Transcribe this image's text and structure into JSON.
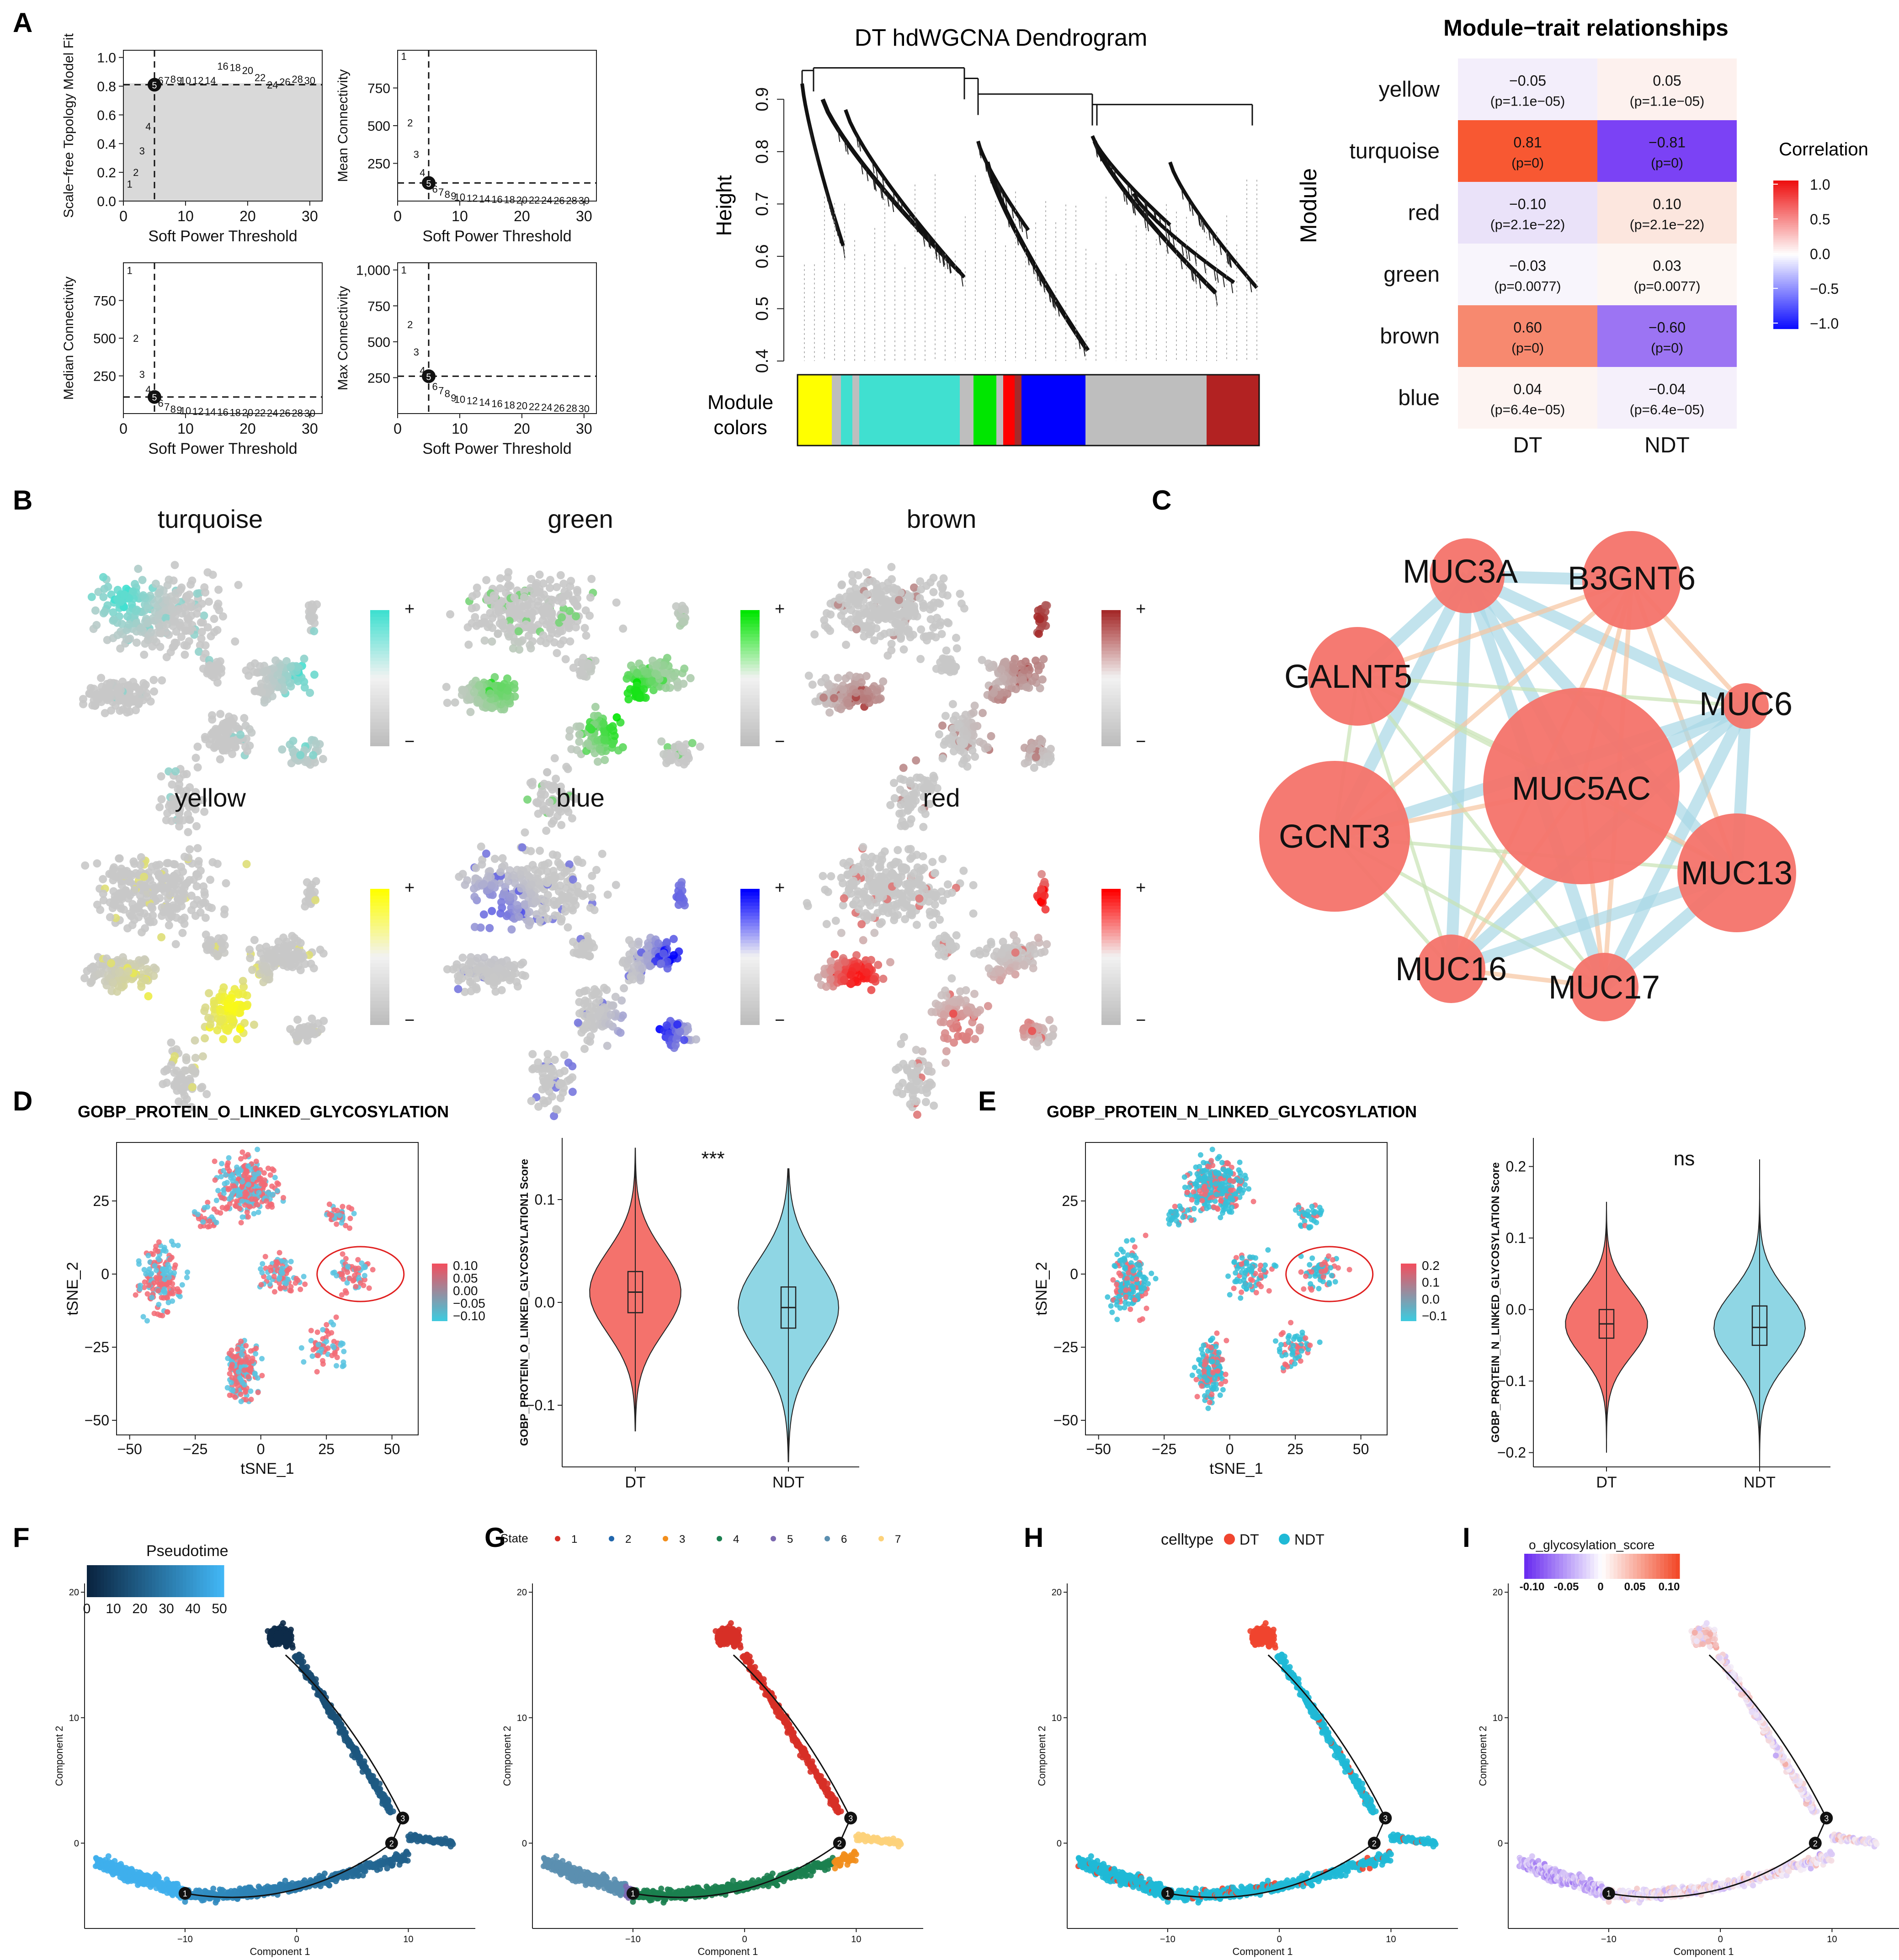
{
  "panel_labels": [
    "A",
    "B",
    "C",
    "D",
    "E",
    "F",
    "G",
    "H",
    "I"
  ],
  "panel_A": {
    "soft_power": {
      "xlabel": "Soft Power Threshold",
      "xticks": [
        "0",
        "10",
        "20",
        "30"
      ],
      "subplots": [
        {
          "ylabel": "Scale−free Topology Model Fit",
          "yticks": [
            "0.0",
            "0.2",
            "0.4",
            "0.6",
            "0.8",
            "1.0"
          ]
        },
        {
          "ylabel": "Mean Connectivity",
          "yticks": [
            "250",
            "500",
            "750"
          ]
        },
        {
          "ylabel": "Median Connectivity",
          "yticks": [
            "250",
            "500",
            "750"
          ]
        },
        {
          "ylabel": "Max Connectivity",
          "yticks": [
            "250",
            "500",
            "750",
            "1,000"
          ]
        }
      ]
    },
    "dendrogram": {
      "title": "DT hdWGCNA Dendrogram",
      "ylabel": "Height",
      "yticks": [
        "0.4",
        "0.5",
        "0.6",
        "0.7",
        "0.8",
        "0.9"
      ],
      "colors_label_1": "Module",
      "colors_label_2": "colors"
    },
    "heatmap": {
      "title": "Module−trait relationships",
      "ylabel": "Module",
      "legend_title": "Correlation",
      "legend_ticks": [
        "1.0",
        "0.5",
        "0.0",
        "−0.5",
        "−1.0"
      ],
      "columns": [
        "DT",
        "NDT"
      ],
      "rows": [
        {
          "module": "yellow",
          "cells": [
            {
              "r": "−0.05",
              "p": "(p=1.1e−05)",
              "fill": "#f3eefb"
            },
            {
              "r": "0.05",
              "p": "(p=1.1e−05)",
              "fill": "#fdf1ee"
            }
          ]
        },
        {
          "module": "turquoise",
          "cells": [
            {
              "r": "0.81",
              "p": "(p=0)",
              "fill": "#f85832"
            },
            {
              "r": "−0.81",
              "p": "(p=0)",
              "fill": "#7b42f5"
            }
          ]
        },
        {
          "module": "red",
          "cells": [
            {
              "r": "−0.10",
              "p": "(p=2.1e−22)",
              "fill": "#eae2f9"
            },
            {
              "r": "0.10",
              "p": "(p=2.1e−22)",
              "fill": "#fce6de"
            }
          ]
        },
        {
          "module": "green",
          "cells": [
            {
              "r": "−0.03",
              "p": "(p=0.0077)",
              "fill": "#f8f5fc"
            },
            {
              "r": "0.03",
              "p": "(p=0.0077)",
              "fill": "#fdf6f3"
            }
          ]
        },
        {
          "module": "brown",
          "cells": [
            {
              "r": "0.60",
              "p": "(p=0)",
              "fill": "#f7896f"
            },
            {
              "r": "−0.60",
              "p": "(p=0)",
              "fill": "#9c74f3"
            }
          ]
        },
        {
          "module": "blue",
          "cells": [
            {
              "r": "0.04",
              "p": "(p=6.4e−05)",
              "fill": "#fdf4f2"
            },
            {
              "r": "−0.04",
              "p": "(p=6.4e−05)",
              "fill": "#f5f0fb"
            }
          ]
        }
      ]
    }
  },
  "panel_B": {
    "modules": [
      {
        "name": "turquoise",
        "color": "#40e0d0"
      },
      {
        "name": "green",
        "color": "#00e600"
      },
      {
        "name": "brown",
        "color": "#a52a2a"
      },
      {
        "name": "yellow",
        "color": "#ffff00"
      },
      {
        "name": "blue",
        "color": "#0000ff"
      },
      {
        "name": "red",
        "color": "#ff0000"
      }
    ],
    "plus": "+",
    "minus": "−"
  },
  "panel_C": {
    "nodes": [
      "MUC3A",
      "B3GNT6",
      "GALNT5",
      "MUC6",
      "MUC5AC",
      "GCNT3",
      "MUC13",
      "MUC16",
      "MUC17"
    ],
    "node_color": "#f4736a"
  },
  "panel_D": {
    "title": "GOBP_PROTEIN_O_LINKED_GLYCOSYLATION",
    "tsne_xlabel": "tSNE_1",
    "tsne_ylabel": "tSNE_2",
    "tsne_xticks": [
      "−50",
      "−25",
      "0",
      "25",
      "50"
    ],
    "tsne_yticks": [
      "25",
      "0",
      "−25",
      "−50"
    ],
    "legend_ticks": [
      "0.10",
      "0.05",
      "0.00",
      "−0.05",
      "−0.10"
    ],
    "violin_ylabel": "GOBP_PROTEIN_O_LINKED_GLYCOSYLATION1 Score",
    "violin_yticks": [
      "0.1",
      "0.0",
      "−0.1"
    ],
    "violin_groups": [
      "DT",
      "NDT"
    ],
    "signif": "***"
  },
  "panel_E": {
    "title": "GOBP_PROTEIN_N_LINKED_GLYCOSYLATION",
    "tsne_xlabel": "tSNE_1",
    "tsne_ylabel": "tSNE_2",
    "tsne_xticks": [
      "−50",
      "−25",
      "0",
      "25",
      "50"
    ],
    "tsne_yticks": [
      "25",
      "0",
      "−25",
      "−50"
    ],
    "legend_ticks": [
      "0.2",
      "0.1",
      "0.0",
      "−0.1"
    ],
    "violin_ylabel": "GOBP_PROTEIN_N_LINKED_GLYCOSYLATION Score",
    "violin_yticks": [
      "0.2",
      "0.1",
      "0.0",
      "−0.1",
      "−0.2"
    ],
    "violin_groups": [
      "DT",
      "NDT"
    ],
    "signif": "ns"
  },
  "trajectory": {
    "xlabel": "Component 1",
    "ylabel": "Component 2",
    "xticks": [
      "−10",
      "0",
      "10"
    ],
    "yticks": [
      "20",
      "10",
      "0"
    ],
    "branch_points": [
      "1",
      "2",
      "3"
    ]
  },
  "panel_F": {
    "legend_title": "Pseudotime",
    "legend_ticks": [
      "0",
      "10",
      "20",
      "30",
      "40",
      "50"
    ]
  },
  "panel_G": {
    "legend_title": "State",
    "states": [
      {
        "label": "1",
        "color": "#d73027"
      },
      {
        "label": "2",
        "color": "#2166ac"
      },
      {
        "label": "3",
        "color": "#f28e1c"
      },
      {
        "label": "4",
        "color": "#1b7f4f"
      },
      {
        "label": "5",
        "color": "#7b68b0"
      },
      {
        "label": "6",
        "color": "#5b8fb0"
      },
      {
        "label": "7",
        "color": "#fdd27a"
      }
    ]
  },
  "panel_H": {
    "legend_title": "celltype",
    "groups": [
      {
        "label": "DT",
        "color": "#f0452f"
      },
      {
        "label": "NDT",
        "color": "#1fb9d6"
      }
    ]
  },
  "panel_I": {
    "legend_title": "o_glycosylation_score",
    "legend_ticks": [
      "-0.10",
      "-0.05",
      "0",
      "0.05",
      "0.10"
    ]
  },
  "chart_data": [
    {
      "type": "scatter",
      "title": "",
      "xlabel": "Soft Power Threshold",
      "ylabel": "Scale−free Topology Model Fit",
      "x": [
        1,
        2,
        3,
        4,
        5,
        6,
        7,
        8,
        9,
        10,
        12,
        14,
        16,
        18,
        20,
        22,
        24,
        26,
        28,
        30
      ],
      "y": [
        0.12,
        0.2,
        0.35,
        0.52,
        0.81,
        0.84,
        0.84,
        0.85,
        0.84,
        0.84,
        0.84,
        0.84,
        0.94,
        0.93,
        0.91,
        0.86,
        0.81,
        0.83,
        0.85,
        0.84
      ],
      "xlim": [
        0,
        32
      ],
      "ylim": [
        0,
        1.05
      ]
    },
    {
      "type": "scatter",
      "title": "",
      "xlabel": "Soft Power Threshold",
      "ylabel": "Mean Connectivity",
      "x": [
        1,
        2,
        3,
        4,
        5,
        6,
        7,
        8,
        9,
        10,
        12,
        14,
        16,
        18,
        20,
        22,
        24,
        26,
        28,
        30
      ],
      "y": [
        960,
        520,
        310,
        190,
        120,
        80,
        60,
        45,
        35,
        28,
        20,
        15,
        12,
        10,
        8,
        7,
        6,
        5,
        5,
        4
      ],
      "xlim": [
        0,
        32
      ],
      "ylim": [
        0,
        1000
      ]
    },
    {
      "type": "scatter",
      "title": "",
      "xlabel": "Soft Power Threshold",
      "ylabel": "Median Connectivity",
      "x": [
        1,
        2,
        3,
        4,
        5,
        6,
        7,
        8,
        9,
        10,
        12,
        14,
        16,
        18,
        20,
        22,
        24,
        26,
        28,
        30
      ],
      "y": [
        950,
        500,
        260,
        160,
        110,
        70,
        45,
        30,
        25,
        20,
        15,
        12,
        10,
        8,
        7,
        6,
        5,
        4,
        4,
        3
      ],
      "xlim": [
        0,
        32
      ],
      "ylim": [
        0,
        1000
      ]
    },
    {
      "type": "scatter",
      "title": "",
      "xlabel": "Soft Power Threshold",
      "ylabel": "Max Connectivity",
      "x": [
        1,
        2,
        3,
        4,
        5,
        6,
        7,
        8,
        9,
        10,
        12,
        14,
        16,
        18,
        20,
        22,
        24,
        26,
        28,
        30
      ],
      "y": [
        1000,
        620,
        430,
        300,
        260,
        190,
        160,
        140,
        110,
        100,
        90,
        80,
        70,
        60,
        55,
        50,
        45,
        40,
        38,
        35
      ],
      "xlim": [
        0,
        32
      ],
      "ylim": [
        0,
        1050
      ]
    },
    {
      "type": "heatmap",
      "title": "Module−trait relationships",
      "rows": [
        "yellow",
        "turquoise",
        "red",
        "green",
        "brown",
        "blue"
      ],
      "columns": [
        "DT",
        "NDT"
      ],
      "values": [
        [
          -0.05,
          0.05
        ],
        [
          0.81,
          -0.81
        ],
        [
          -0.1,
          0.1
        ],
        [
          -0.03,
          0.03
        ],
        [
          0.6,
          -0.6
        ],
        [
          0.04,
          -0.04
        ]
      ]
    }
  ]
}
